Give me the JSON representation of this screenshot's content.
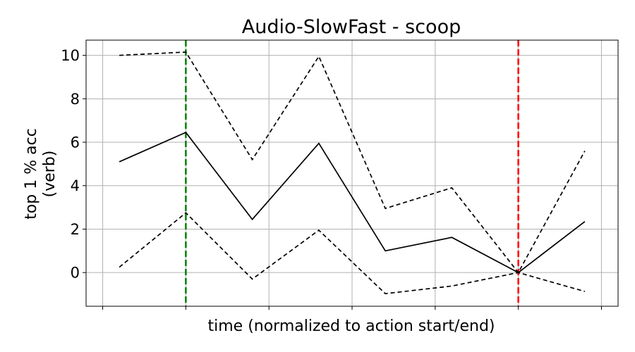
{
  "chart_data": {
    "type": "line",
    "title": "Audio-SlowFast - scoop",
    "xlabel": "time (normalized to action start/end)",
    "ylabel_lines": [
      "top 1 % acc",
      "(verb)"
    ],
    "x": [
      -0.8,
      0,
      0.8,
      1.6,
      2.4,
      3.2,
      4.0,
      4.8
    ],
    "xlim": [
      -1.2,
      5.2
    ],
    "x_ticks": [
      -1,
      0,
      1,
      2,
      3,
      4,
      5
    ],
    "ylim": [
      -1.55,
      10.7
    ],
    "y_ticks": [
      0,
      2,
      4,
      6,
      8,
      10
    ],
    "grid": true,
    "series": [
      {
        "style": "solid",
        "color": "#000000",
        "values": [
          5.1,
          6.45,
          2.45,
          5.95,
          1.0,
          1.62,
          0.0,
          2.35
        ]
      },
      {
        "style": "dashed",
        "color": "#000000",
        "values": [
          10.0,
          10.15,
          5.2,
          9.95,
          2.95,
          3.9,
          0.0,
          5.6
        ]
      },
      {
        "style": "dashed",
        "color": "#000000",
        "values": [
          0.25,
          2.75,
          -0.3,
          1.95,
          -0.97,
          -0.62,
          0.0,
          -0.87
        ]
      }
    ],
    "vlines": [
      {
        "x": 0,
        "color": "#008000",
        "style": "dashed"
      },
      {
        "x": 4,
        "color": "#ff0000",
        "style": "dashed"
      }
    ]
  }
}
